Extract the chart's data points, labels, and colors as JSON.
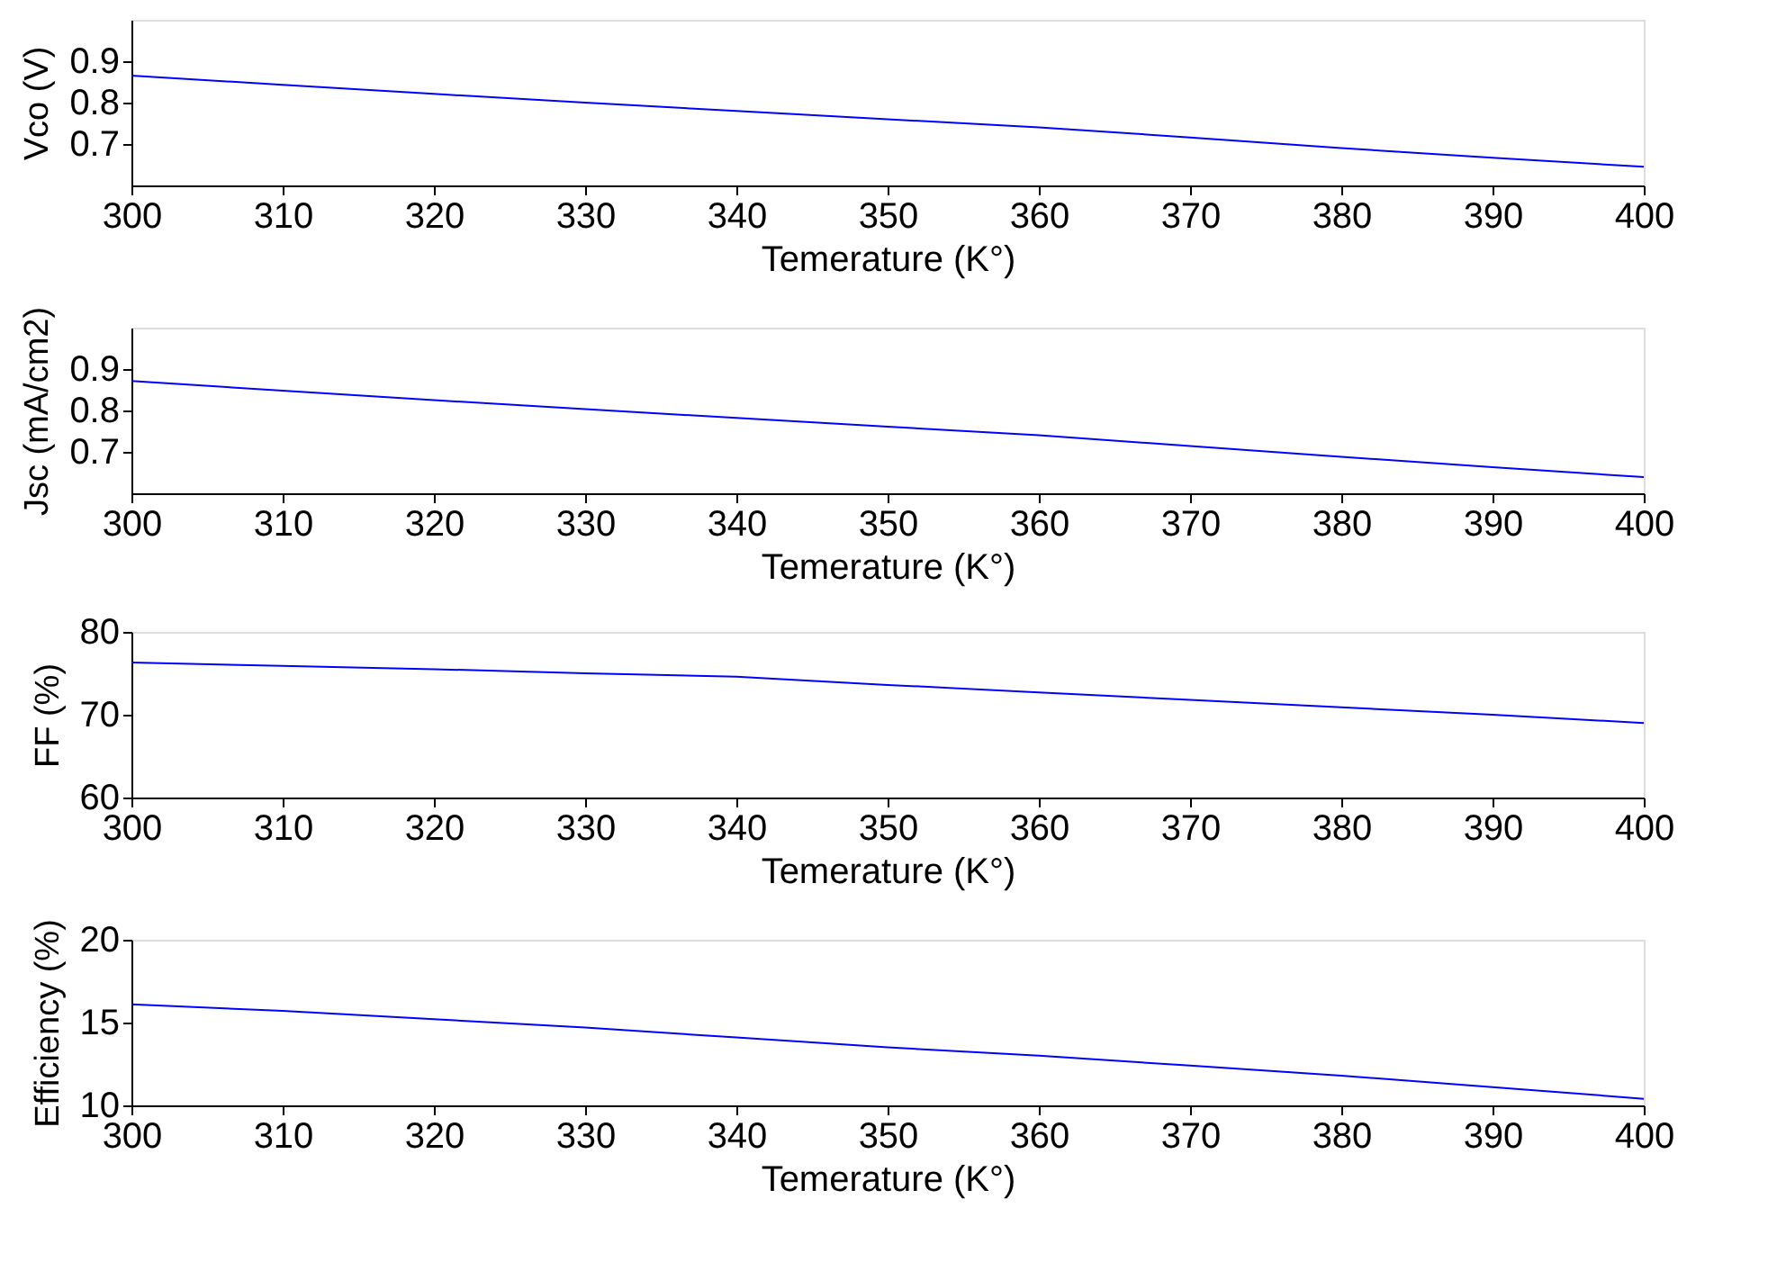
{
  "chart_data": [
    {
      "type": "line",
      "xlabel": "Temerature (K°)",
      "ylabel": "Vco (V)",
      "x": [
        300,
        310,
        320,
        330,
        340,
        350,
        360,
        370,
        380,
        390,
        400
      ],
      "series": [
        {
          "color": "#0000ff",
          "values": [
            0.865,
            0.843,
            0.821,
            0.8,
            0.78,
            0.76,
            0.74,
            0.716,
            0.69,
            0.667,
            0.645
          ]
        }
      ],
      "xlim": [
        300,
        400
      ],
      "xticks": [
        300,
        310,
        320,
        330,
        340,
        350,
        360,
        370,
        380,
        390,
        400
      ],
      "ylim": [
        0.6,
        1.0
      ],
      "yticks": [
        0.7,
        0.8,
        0.9
      ],
      "grid": false
    },
    {
      "type": "line",
      "xlabel": "Temerature (K°)",
      "ylabel": "Jsc (mA/cm2)",
      "x": [
        300,
        310,
        320,
        330,
        340,
        350,
        360,
        370,
        380,
        390,
        400
      ],
      "series": [
        {
          "color": "#0000ff",
          "values": [
            0.871,
            0.848,
            0.825,
            0.803,
            0.782,
            0.761,
            0.74,
            0.714,
            0.688,
            0.663,
            0.639
          ]
        }
      ],
      "xlim": [
        300,
        400
      ],
      "xticks": [
        300,
        310,
        320,
        330,
        340,
        350,
        360,
        370,
        380,
        390,
        400
      ],
      "ylim": [
        0.6,
        1.0
      ],
      "yticks": [
        0.7,
        0.8,
        0.9
      ],
      "grid": false
    },
    {
      "type": "line",
      "xlabel": "Temerature (K°)",
      "ylabel": "FF (%)",
      "x": [
        300,
        310,
        320,
        330,
        340,
        350,
        360,
        370,
        380,
        390,
        400
      ],
      "series": [
        {
          "color": "#0000ff",
          "values": [
            76.3,
            75.9,
            75.5,
            75.0,
            74.6,
            73.6,
            72.7,
            71.8,
            70.9,
            70.0,
            69.0
          ]
        }
      ],
      "xlim": [
        300,
        400
      ],
      "xticks": [
        300,
        310,
        320,
        330,
        340,
        350,
        360,
        370,
        380,
        390,
        400
      ],
      "ylim": [
        60,
        80
      ],
      "yticks": [
        60,
        70,
        80
      ],
      "grid": false
    },
    {
      "type": "line",
      "xlabel": "Temerature (K°)",
      "ylabel": "Efficiency (%)",
      "x": [
        300,
        310,
        320,
        330,
        340,
        350,
        360,
        370,
        380,
        390,
        400
      ],
      "series": [
        {
          "color": "#0000ff",
          "values": [
            16.1,
            15.7,
            15.2,
            14.7,
            14.1,
            13.5,
            13.0,
            12.4,
            11.8,
            11.1,
            10.4
          ]
        }
      ],
      "xlim": [
        300,
        400
      ],
      "xticks": [
        300,
        310,
        320,
        330,
        340,
        350,
        360,
        370,
        380,
        390,
        400
      ],
      "ylim": [
        10,
        20
      ],
      "yticks": [
        10,
        15,
        20
      ],
      "grid": false
    }
  ]
}
